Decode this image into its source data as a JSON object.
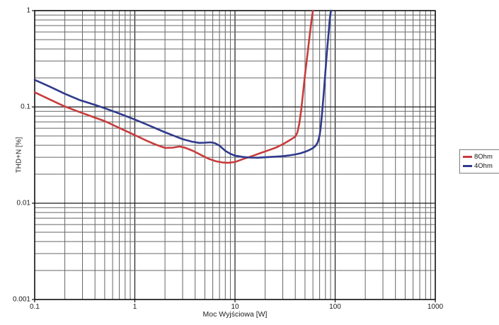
{
  "chart_data": {
    "type": "line",
    "title": "",
    "xlabel": "Moc Wyjściowa [W]",
    "ylabel": "THD+N [%]",
    "x_scale": "log",
    "y_scale": "log",
    "xlim": [
      0.1,
      1000
    ],
    "ylim": [
      0.001,
      1
    ],
    "x_ticks": [
      0.1,
      1,
      10,
      100,
      1000
    ],
    "x_tick_labels": [
      "0.1",
      "1",
      "10",
      "100",
      "1000"
    ],
    "y_ticks": [
      1,
      0.1,
      0.01,
      0.001
    ],
    "y_tick_labels": [
      "1",
      "0.1",
      "0.01",
      "0.001"
    ],
    "grid": "log major+minor, both axes",
    "legend_position": "outside-right",
    "series": [
      {
        "name": "8Ohm",
        "color": "#c83c3c",
        "points": [
          [
            0.1,
            0.142
          ],
          [
            0.14,
            0.12
          ],
          [
            0.2,
            0.101
          ],
          [
            0.28,
            0.0885
          ],
          [
            0.4,
            0.0775
          ],
          [
            0.5,
            0.0713
          ],
          [
            0.7,
            0.0605
          ],
          [
            1.0,
            0.051
          ],
          [
            1.3,
            0.0448
          ],
          [
            1.6,
            0.0408
          ],
          [
            2.0,
            0.0375
          ],
          [
            2.4,
            0.0378
          ],
          [
            2.8,
            0.0388
          ],
          [
            3.2,
            0.0376
          ],
          [
            3.8,
            0.035
          ],
          [
            4.5,
            0.032
          ],
          [
            5.5,
            0.0288
          ],
          [
            6.5,
            0.0272
          ],
          [
            7.5,
            0.0265
          ],
          [
            8.5,
            0.0263
          ],
          [
            10,
            0.0268
          ],
          [
            12,
            0.0287
          ],
          [
            15,
            0.031
          ],
          [
            18,
            0.0332
          ],
          [
            22,
            0.0357
          ],
          [
            26,
            0.038
          ],
          [
            30,
            0.041
          ],
          [
            34,
            0.0442
          ],
          [
            37,
            0.0466
          ],
          [
            40,
            0.0492
          ],
          [
            42,
            0.0545
          ],
          [
            44,
            0.068
          ],
          [
            46,
            0.096
          ],
          [
            48,
            0.145
          ],
          [
            50,
            0.215
          ],
          [
            52,
            0.3
          ],
          [
            54,
            0.42
          ],
          [
            56,
            0.58
          ],
          [
            58,
            0.78
          ],
          [
            60,
            1.0
          ]
        ]
      },
      {
        "name": "4Ohm",
        "color": "#2e3a8c",
        "points": [
          [
            0.1,
            0.191
          ],
          [
            0.14,
            0.163
          ],
          [
            0.2,
            0.137
          ],
          [
            0.28,
            0.118
          ],
          [
            0.4,
            0.105
          ],
          [
            0.5,
            0.097
          ],
          [
            0.7,
            0.0855
          ],
          [
            1.0,
            0.074
          ],
          [
            1.4,
            0.064
          ],
          [
            1.9,
            0.0558
          ],
          [
            2.4,
            0.0506
          ],
          [
            3.0,
            0.0463
          ],
          [
            3.7,
            0.0436
          ],
          [
            4.4,
            0.0423
          ],
          [
            5.0,
            0.0425
          ],
          [
            5.7,
            0.0429
          ],
          [
            6.3,
            0.0421
          ],
          [
            7.0,
            0.0396
          ],
          [
            8.0,
            0.035
          ],
          [
            9.0,
            0.0326
          ],
          [
            10,
            0.0312
          ],
          [
            12,
            0.0302
          ],
          [
            14,
            0.0298
          ],
          [
            17,
            0.0297
          ],
          [
            20,
            0.03
          ],
          [
            25,
            0.0304
          ],
          [
            30,
            0.0308
          ],
          [
            35,
            0.0314
          ],
          [
            40,
            0.0321
          ],
          [
            45,
            0.033
          ],
          [
            50,
            0.0342
          ],
          [
            55,
            0.0356
          ],
          [
            60,
            0.0374
          ],
          [
            64,
            0.0396
          ],
          [
            67,
            0.0428
          ],
          [
            70,
            0.0505
          ],
          [
            72,
            0.0635
          ],
          [
            74,
            0.0855
          ],
          [
            76,
            0.118
          ],
          [
            78,
            0.165
          ],
          [
            80,
            0.235
          ],
          [
            83,
            0.38
          ],
          [
            86,
            0.58
          ],
          [
            88,
            0.77
          ],
          [
            90,
            0.94
          ],
          [
            91,
            1.0
          ]
        ]
      }
    ]
  },
  "legend": {
    "entries": [
      {
        "label": "8Ohm",
        "color": "#c83c3c"
      },
      {
        "label": "4Ohm",
        "color": "#2e3a8c"
      }
    ]
  },
  "layout_colors": {
    "background": "#ffffff",
    "grid_minor": "#666666",
    "grid_major": "#1c1c1c",
    "frame": "#111111",
    "text": "#1a1a1a"
  }
}
